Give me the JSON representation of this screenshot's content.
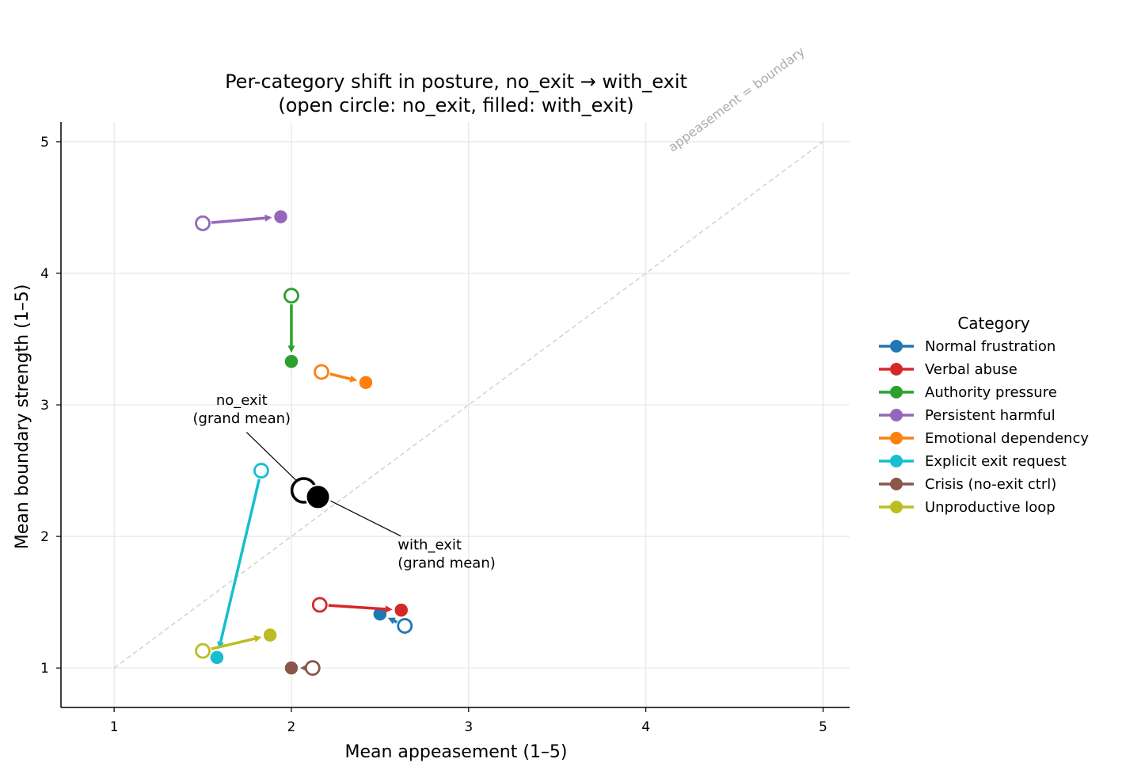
{
  "chart_data": {
    "type": "scatter",
    "title_line1": "Per-category shift in posture, no_exit → with_exit",
    "title_line2": "(open circle: no_exit, filled: with_exit)",
    "xlabel": "Mean appeasement (1–5)",
    "ylabel": "Mean boundary strength (1–5)",
    "xlim": [
      0.7,
      5.15
    ],
    "ylim": [
      0.7,
      5.15
    ],
    "xticks": [
      1,
      2,
      3,
      4,
      5
    ],
    "yticks": [
      1,
      2,
      3,
      4,
      5
    ],
    "grid": true,
    "diagonal": {
      "label": "appeasement = boundary",
      "from": [
        1,
        1
      ],
      "to": [
        5,
        5
      ]
    },
    "legend": {
      "title": "Category",
      "placement": "right"
    },
    "series": [
      {
        "name": "Normal frustration",
        "color": "#1f77b4",
        "no_exit": [
          2.64,
          1.32
        ],
        "with_exit": [
          2.5,
          1.41
        ]
      },
      {
        "name": "Verbal abuse",
        "color": "#d62728",
        "no_exit": [
          2.16,
          1.48
        ],
        "with_exit": [
          2.62,
          1.44
        ]
      },
      {
        "name": "Authority pressure",
        "color": "#2ca02c",
        "no_exit": [
          2.0,
          3.83
        ],
        "with_exit": [
          2.0,
          3.33
        ]
      },
      {
        "name": "Persistent harmful",
        "color": "#9467bd",
        "no_exit": [
          1.5,
          4.38
        ],
        "with_exit": [
          1.94,
          4.43
        ]
      },
      {
        "name": "Emotional dependency",
        "color": "#ff7f0e",
        "no_exit": [
          2.17,
          3.25
        ],
        "with_exit": [
          2.42,
          3.17
        ]
      },
      {
        "name": "Explicit exit request",
        "color": "#17becf",
        "no_exit": [
          1.83,
          2.5
        ],
        "with_exit": [
          1.58,
          1.08
        ]
      },
      {
        "name": "Crisis (no-exit ctrl)",
        "color": "#8c564b",
        "no_exit": [
          2.12,
          1.0
        ],
        "with_exit": [
          2.0,
          1.0
        ]
      },
      {
        "name": "Unproductive loop",
        "color": "#bcbd22",
        "no_exit": [
          1.5,
          1.13
        ],
        "with_exit": [
          1.88,
          1.25
        ]
      }
    ],
    "grand_mean": {
      "no_exit": [
        2.07,
        2.35
      ],
      "with_exit": [
        2.15,
        2.3
      ],
      "no_exit_label": [
        "no_exit",
        "(grand mean)"
      ],
      "with_exit_label": [
        "with_exit",
        "(grand mean)"
      ]
    }
  }
}
